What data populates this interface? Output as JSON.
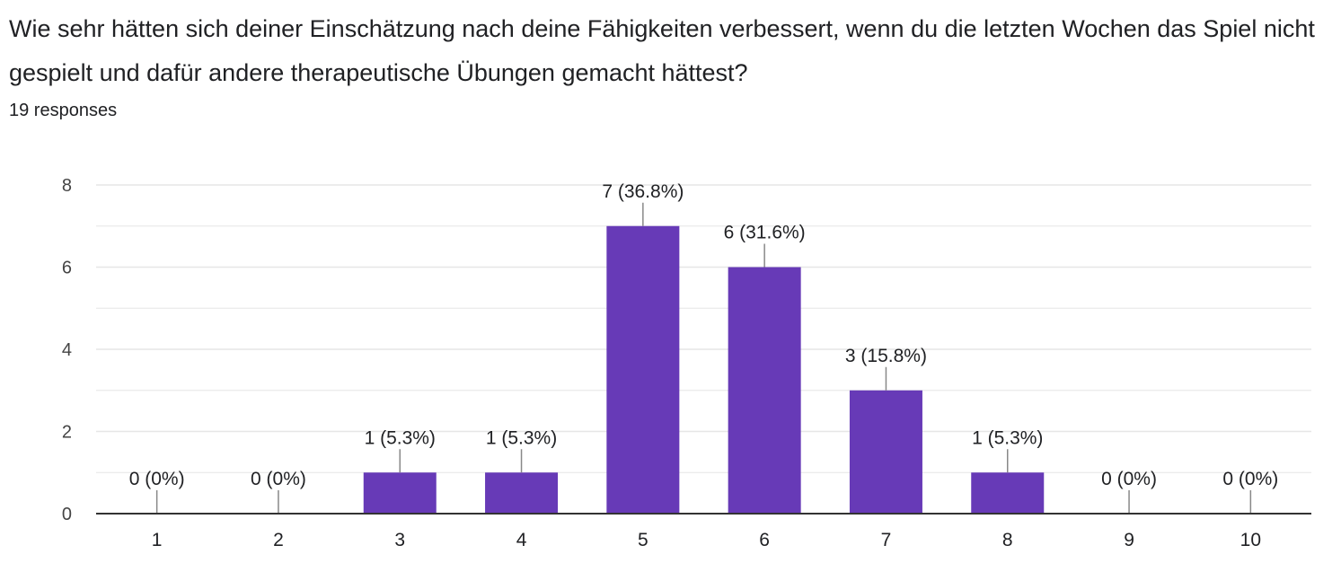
{
  "question": {
    "text": "Wie sehr hätten sich deiner Einschätzung nach deine Fähigkeiten verbessert, wenn du die letzten Wochen das Spiel nicht gespielt  und dafür andere therapeutische Übungen gemacht hättest?",
    "responses": "19 responses"
  },
  "colors": {
    "bar": "#673ab7",
    "text": "#202124",
    "grid": "#e6e6e6",
    "axis": "#333333"
  },
  "chart_data": {
    "type": "bar",
    "categories": [
      "1",
      "2",
      "3",
      "4",
      "5",
      "6",
      "7",
      "8",
      "9",
      "10"
    ],
    "values": [
      0,
      0,
      1,
      1,
      7,
      6,
      3,
      1,
      0,
      0
    ],
    "data_labels": [
      "0 (0%)",
      "0 (0%)",
      "1 (5.3%)",
      "1 (5.3%)",
      "7 (36.8%)",
      "6 (31.6%)",
      "3 (15.8%)",
      "1 (5.3%)",
      "0 (0%)",
      "0 (0%)"
    ],
    "yticks": [
      0,
      2,
      4,
      6,
      8
    ],
    "ylim": [
      0,
      8
    ],
    "grid": true,
    "legend": false
  }
}
